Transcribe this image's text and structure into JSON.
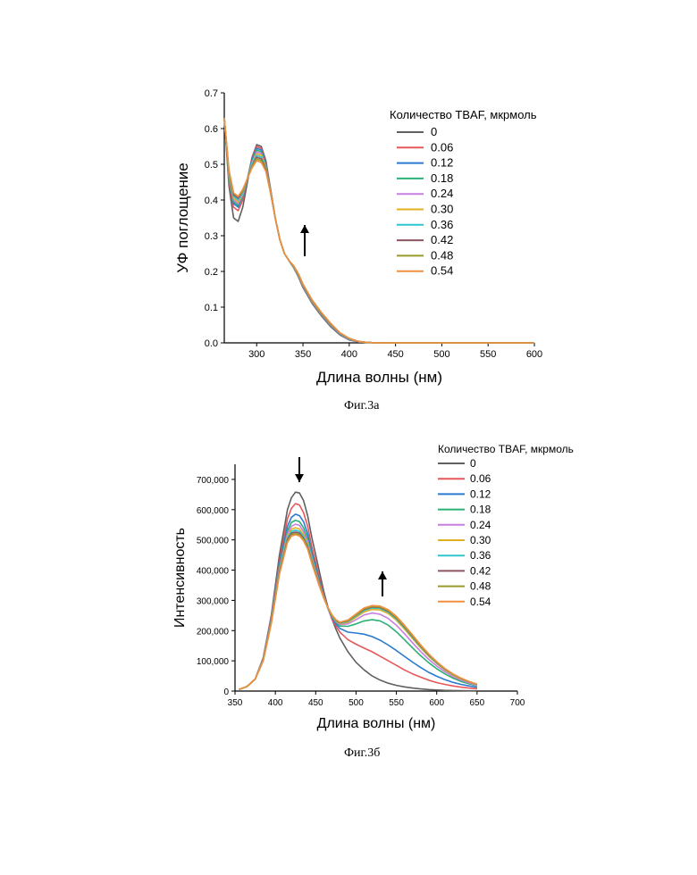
{
  "figures": {
    "fig_a_caption": "Фиг.3а",
    "fig_b_caption": "Фиг.3б"
  },
  "legend_colors": [
    "#606060",
    "#e8575a",
    "#2a7ad0",
    "#2bb077",
    "#c77fe0",
    "#e0b020",
    "#2ec6d0",
    "#8c5560",
    "#9a9a2a",
    "#f09040"
  ],
  "chart_data": [
    {
      "type": "line",
      "id": "uv",
      "title": "",
      "xlabel": "Длина волны (нм)",
      "ylabel": "УФ поглощение",
      "xlim": [
        265,
        600
      ],
      "ylim": [
        0,
        0.7
      ],
      "x_ticks": [
        300,
        350,
        400,
        450,
        500,
        550,
        600
      ],
      "y_ticks": [
        0.0,
        0.1,
        0.2,
        0.3,
        0.4,
        0.5,
        0.6,
        0.7
      ],
      "x_tick_labels": [
        "300",
        "350",
        "400",
        "450",
        "500",
        "550",
        "600"
      ],
      "y_tick_labels": [
        "0.0",
        "0.1",
        "0.2",
        "0.3",
        "0.4",
        "0.5",
        "0.6",
        "0.7"
      ],
      "legend_title": "Количество TBAF, мкрмоль",
      "legend_placement": "top-right",
      "annotation": "arrow up at ~350 nm",
      "x": [
        265,
        270,
        275,
        280,
        285,
        290,
        295,
        300,
        305,
        310,
        315,
        320,
        325,
        330,
        335,
        340,
        345,
        350,
        360,
        370,
        380,
        390,
        400,
        410,
        420,
        430,
        450,
        500,
        550,
        600
      ],
      "series": [
        {
          "name": "0",
          "values": [
            0.63,
            0.44,
            0.35,
            0.34,
            0.38,
            0.45,
            0.52,
            0.555,
            0.55,
            0.51,
            0.43,
            0.35,
            0.29,
            0.25,
            0.23,
            0.21,
            0.185,
            0.155,
            0.11,
            0.075,
            0.045,
            0.022,
            0.008,
            0.003,
            0.001,
            0.0,
            0.0,
            0.0,
            0.0,
            0.0
          ]
        },
        {
          "name": "0.06",
          "values": [
            0.63,
            0.45,
            0.38,
            0.37,
            0.4,
            0.46,
            0.52,
            0.55,
            0.545,
            0.505,
            0.43,
            0.35,
            0.29,
            0.25,
            0.23,
            0.21,
            0.186,
            0.157,
            0.112,
            0.077,
            0.047,
            0.024,
            0.009,
            0.003,
            0.001,
            0.0,
            0.0,
            0.0,
            0.0,
            0.0
          ]
        },
        {
          "name": "0.12",
          "values": [
            0.63,
            0.46,
            0.39,
            0.38,
            0.41,
            0.46,
            0.515,
            0.545,
            0.54,
            0.5,
            0.43,
            0.35,
            0.29,
            0.25,
            0.23,
            0.21,
            0.187,
            0.158,
            0.113,
            0.078,
            0.048,
            0.024,
            0.009,
            0.003,
            0.001,
            0.0,
            0.0,
            0.0,
            0.0,
            0.0
          ]
        },
        {
          "name": "0.18",
          "values": [
            0.63,
            0.46,
            0.395,
            0.385,
            0.41,
            0.46,
            0.51,
            0.54,
            0.535,
            0.495,
            0.425,
            0.35,
            0.29,
            0.25,
            0.23,
            0.21,
            0.188,
            0.159,
            0.114,
            0.079,
            0.049,
            0.025,
            0.01,
            0.003,
            0.001,
            0.0,
            0.0,
            0.0,
            0.0,
            0.0
          ]
        },
        {
          "name": "0.24",
          "values": [
            0.63,
            0.47,
            0.4,
            0.39,
            0.415,
            0.46,
            0.505,
            0.535,
            0.53,
            0.49,
            0.425,
            0.35,
            0.29,
            0.25,
            0.23,
            0.211,
            0.189,
            0.16,
            0.115,
            0.08,
            0.05,
            0.025,
            0.01,
            0.003,
            0.001,
            0.0,
            0.0,
            0.0,
            0.0,
            0.0
          ]
        },
        {
          "name": "0.30",
          "values": [
            0.63,
            0.47,
            0.405,
            0.395,
            0.42,
            0.46,
            0.5,
            0.53,
            0.525,
            0.49,
            0.425,
            0.35,
            0.29,
            0.25,
            0.23,
            0.212,
            0.19,
            0.161,
            0.116,
            0.081,
            0.051,
            0.026,
            0.011,
            0.004,
            0.001,
            0.0,
            0.0,
            0.0,
            0.0,
            0.0
          ]
        },
        {
          "name": "0.36",
          "values": [
            0.63,
            0.475,
            0.41,
            0.4,
            0.42,
            0.46,
            0.5,
            0.525,
            0.52,
            0.485,
            0.42,
            0.35,
            0.29,
            0.25,
            0.23,
            0.213,
            0.191,
            0.162,
            0.117,
            0.082,
            0.052,
            0.026,
            0.011,
            0.004,
            0.001,
            0.0,
            0.0,
            0.0,
            0.0,
            0.0
          ]
        },
        {
          "name": "0.42",
          "values": [
            0.63,
            0.48,
            0.415,
            0.405,
            0.425,
            0.46,
            0.495,
            0.52,
            0.515,
            0.485,
            0.42,
            0.35,
            0.29,
            0.25,
            0.23,
            0.214,
            0.192,
            0.163,
            0.118,
            0.083,
            0.053,
            0.027,
            0.012,
            0.004,
            0.001,
            0.0,
            0.0,
            0.0,
            0.0,
            0.0
          ]
        },
        {
          "name": "0.48",
          "values": [
            0.63,
            0.48,
            0.42,
            0.41,
            0.425,
            0.46,
            0.495,
            0.515,
            0.51,
            0.48,
            0.42,
            0.35,
            0.29,
            0.25,
            0.23,
            0.215,
            0.193,
            0.164,
            0.119,
            0.084,
            0.054,
            0.028,
            0.012,
            0.004,
            0.001,
            0.0,
            0.0,
            0.0,
            0.0,
            0.0
          ]
        },
        {
          "name": "0.54",
          "values": [
            0.63,
            0.485,
            0.42,
            0.41,
            0.43,
            0.46,
            0.49,
            0.51,
            0.505,
            0.48,
            0.42,
            0.35,
            0.29,
            0.25,
            0.23,
            0.216,
            0.194,
            0.165,
            0.12,
            0.085,
            0.055,
            0.028,
            0.013,
            0.004,
            0.001,
            0.0,
            0.0,
            0.0,
            0.0,
            0.0
          ]
        }
      ]
    },
    {
      "type": "line",
      "id": "fl",
      "title": "",
      "xlabel": "Длина волны (нм)",
      "ylabel": "Интенсивность",
      "xlim": [
        350,
        700
      ],
      "ylim": [
        0,
        750000
      ],
      "x_ticks": [
        350,
        400,
        450,
        500,
        550,
        600,
        650,
        700
      ],
      "y_ticks": [
        0,
        100000,
        200000,
        300000,
        400000,
        500000,
        600000,
        700000
      ],
      "x_tick_labels": [
        "350",
        "400",
        "450",
        "500",
        "550",
        "600",
        "650",
        "700"
      ],
      "y_tick_labels": [
        "0",
        "100,000",
        "200,000",
        "300,000",
        "400,000",
        "500,000",
        "600,000",
        "700,000"
      ],
      "legend_title": "Количество TBAF, мкрмоль",
      "legend_placement": "top-right",
      "annotation": "arrow down at ~430 nm, arrow up at ~530 nm",
      "x": [
        355,
        365,
        375,
        385,
        395,
        405,
        415,
        420,
        425,
        430,
        435,
        440,
        445,
        450,
        455,
        460,
        465,
        470,
        475,
        480,
        490,
        500,
        510,
        520,
        530,
        540,
        550,
        560,
        570,
        580,
        590,
        600,
        610,
        620,
        630,
        640,
        650
      ],
      "series": [
        {
          "name": "0",
          "values": [
            5000,
            15000,
            40000,
            110000,
            250000,
            450000,
            600000,
            640000,
            658000,
            655000,
            630000,
            580000,
            510000,
            450000,
            390000,
            330000,
            280000,
            240000,
            205000,
            175000,
            130000,
            95000,
            70000,
            50000,
            36000,
            26000,
            19000,
            14000,
            10000,
            7000,
            5000,
            3500,
            2500,
            1800,
            1200,
            800,
            500
          ]
        },
        {
          "name": "0.06",
          "values": [
            5000,
            15000,
            40000,
            110000,
            245000,
            430000,
            570000,
            605000,
            620000,
            615000,
            590000,
            545000,
            480000,
            425000,
            370000,
            320000,
            275000,
            240000,
            215000,
            195000,
            170000,
            155000,
            142000,
            130000,
            115000,
            100000,
            85000,
            70000,
            57000,
            46000,
            36000,
            28000,
            22000,
            17000,
            13000,
            10000,
            7000
          ]
        },
        {
          "name": "0.12",
          "values": [
            5000,
            15000,
            40000,
            108000,
            240000,
            420000,
            545000,
            575000,
            585000,
            580000,
            560000,
            520000,
            460000,
            410000,
            360000,
            315000,
            275000,
            245000,
            222000,
            207000,
            195000,
            192000,
            188000,
            180000,
            168000,
            152000,
            134000,
            115000,
            96000,
            78000,
            62000,
            49000,
            38000,
            29000,
            22000,
            17000,
            12000
          ]
        },
        {
          "name": "0.18",
          "values": [
            5000,
            15000,
            40000,
            106000,
            236000,
            410000,
            530000,
            558000,
            565000,
            560000,
            540000,
            505000,
            450000,
            402000,
            355000,
            313000,
            275000,
            247000,
            227000,
            215000,
            214000,
            222000,
            232000,
            236000,
            232000,
            218000,
            196000,
            170000,
            143000,
            117000,
            94000,
            74000,
            57000,
            43000,
            32000,
            24000,
            17000
          ]
        },
        {
          "name": "0.24",
          "values": [
            5000,
            15000,
            40000,
            105000,
            233000,
            405000,
            520000,
            545000,
            552000,
            548000,
            528000,
            495000,
            443000,
            397000,
            352000,
            312000,
            276000,
            249000,
            230000,
            220000,
            222000,
            236000,
            252000,
            258000,
            254000,
            240000,
            218000,
            190000,
            160000,
            131000,
            105000,
            83000,
            64000,
            48000,
            36000,
            27000,
            19000
          ]
        },
        {
          "name": "0.30",
          "values": [
            5000,
            15000,
            40000,
            104000,
            231000,
            400000,
            512000,
            535000,
            540000,
            536000,
            518000,
            487000,
            437000,
            393000,
            350000,
            311000,
            277000,
            250000,
            232000,
            223000,
            227000,
            244000,
            262000,
            270000,
            268000,
            256000,
            234000,
            205000,
            174000,
            143000,
            115000,
            91000,
            70000,
            53000,
            40000,
            30000,
            21000
          ]
        },
        {
          "name": "0.36",
          "values": [
            5000,
            15000,
            40000,
            103000,
            229000,
            396000,
            506000,
            528000,
            532000,
            528000,
            511000,
            481000,
            433000,
            390000,
            348000,
            310000,
            277000,
            251000,
            233000,
            225000,
            230000,
            248000,
            267000,
            275000,
            273000,
            261000,
            239000,
            210000,
            178000,
            147000,
            118000,
            93000,
            72000,
            55000,
            41000,
            31000,
            22000
          ]
        },
        {
          "name": "0.42",
          "values": [
            5000,
            15000,
            40000,
            102000,
            227000,
            392000,
            500000,
            522000,
            526000,
            522000,
            505000,
            476000,
            429000,
            387000,
            346000,
            309000,
            277000,
            252000,
            234000,
            226000,
            232000,
            251000,
            270000,
            278000,
            276000,
            264000,
            242000,
            213000,
            181000,
            149000,
            120000,
            95000,
            73000,
            56000,
            42000,
            31000,
            22000
          ]
        },
        {
          "name": "0.48",
          "values": [
            5000,
            15000,
            40000,
            101000,
            225000,
            389000,
            496000,
            517000,
            521000,
            517000,
            501000,
            472000,
            426000,
            385000,
            345000,
            308000,
            277000,
            252000,
            235000,
            227000,
            233000,
            252000,
            272000,
            280000,
            278000,
            266000,
            244000,
            215000,
            183000,
            151000,
            121000,
            96000,
            74000,
            56000,
            42000,
            32000,
            22000
          ]
        },
        {
          "name": "0.54",
          "values": [
            5000,
            15000,
            40000,
            100000,
            223000,
            386000,
            492000,
            513000,
            517000,
            513000,
            497000,
            469000,
            424000,
            383000,
            344000,
            308000,
            277000,
            253000,
            236000,
            228000,
            235000,
            255000,
            275000,
            283000,
            281000,
            269000,
            247000,
            218000,
            186000,
            153000,
            123000,
            97000,
            75000,
            57000,
            43000,
            32000,
            23000
          ]
        }
      ]
    }
  ]
}
